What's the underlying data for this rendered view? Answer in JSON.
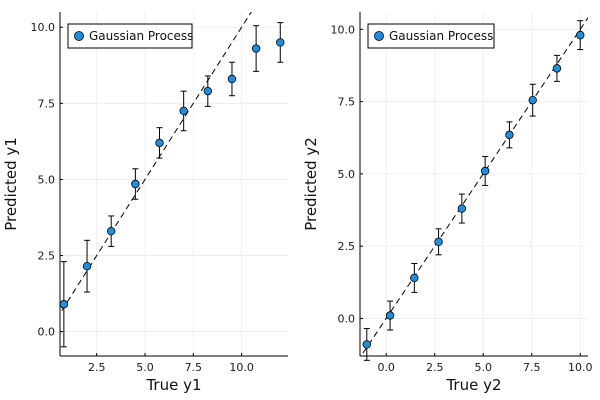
{
  "chart_data": [
    {
      "type": "scatter",
      "xlabel": "True y1",
      "ylabel": "Predicted y1",
      "xlim": [
        0.6,
        12.4
      ],
      "ylim": [
        -0.8,
        10.5
      ],
      "xticks": [
        2.5,
        5.0,
        7.5,
        10.0
      ],
      "xtick_labels": [
        "2.5",
        "5.0",
        "7.5",
        "10.0"
      ],
      "yticks": [
        0.0,
        2.5,
        5.0,
        7.5,
        10.0
      ],
      "ytick_labels": [
        "0.0",
        "2.5",
        "5.0",
        "7.5",
        "10.0"
      ],
      "grid": true,
      "legend_position": "top-left",
      "reference_line": "y = x (dashed)",
      "series": [
        {
          "name": "Gaussian Process",
          "color": "#1f8ee0",
          "x": [
            0.8,
            2.0,
            3.25,
            4.5,
            5.75,
            7.0,
            8.25,
            9.5,
            10.75,
            12.0
          ],
          "y": [
            0.9,
            2.15,
            3.3,
            4.85,
            6.2,
            7.25,
            7.9,
            8.3,
            9.3,
            9.5
          ],
          "error": [
            1.4,
            0.85,
            0.5,
            0.5,
            0.5,
            0.65,
            0.5,
            0.55,
            0.75,
            0.65
          ]
        }
      ]
    },
    {
      "type": "scatter",
      "xlabel": "True y2",
      "ylabel": "Predicted y2",
      "xlim": [
        -1.35,
        10.4
      ],
      "ylim": [
        -1.3,
        10.6
      ],
      "xticks": [
        0.0,
        2.5,
        5.0,
        7.5,
        10.0
      ],
      "xtick_labels": [
        "0.0",
        "2.5",
        "5.0",
        "7.5",
        "10.0"
      ],
      "yticks": [
        0.0,
        2.5,
        5.0,
        7.5,
        10.0
      ],
      "ytick_labels": [
        "0.0",
        "2.5",
        "5.0",
        "7.5",
        "10.0"
      ],
      "grid": true,
      "legend_position": "top-left",
      "reference_line": "y = x (dashed)",
      "series": [
        {
          "name": "Gaussian Process",
          "color": "#1f8ee0",
          "x": [
            -1.0,
            0.2,
            1.45,
            2.7,
            3.9,
            5.1,
            6.35,
            7.55,
            8.8,
            10.0
          ],
          "y": [
            -0.9,
            0.1,
            1.4,
            2.65,
            3.8,
            5.1,
            6.35,
            7.55,
            8.65,
            9.8
          ],
          "error": [
            0.55,
            0.5,
            0.5,
            0.45,
            0.5,
            0.5,
            0.45,
            0.55,
            0.45,
            0.5
          ]
        }
      ]
    }
  ]
}
